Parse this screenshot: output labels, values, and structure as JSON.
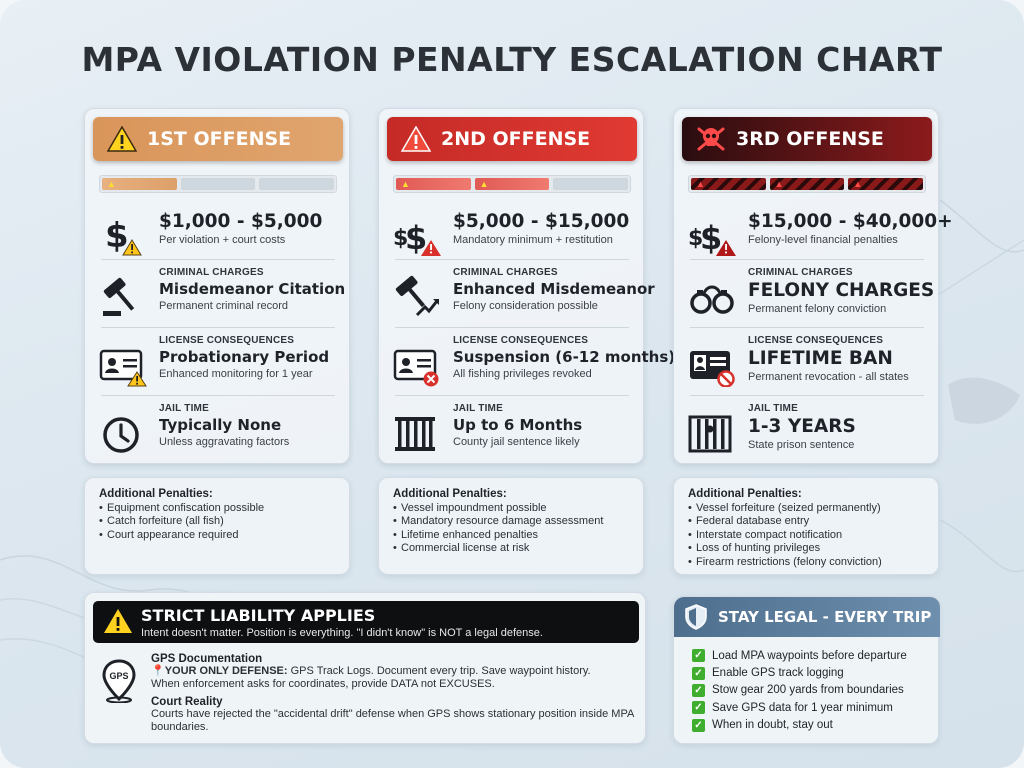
{
  "title": "MPA VIOLATION PENALTY ESCALATION CHART",
  "offenses": [
    {
      "header": "1ST OFFENSE",
      "fine": {
        "amount": "$1,000 - $5,000",
        "note": "Per violation + court costs"
      },
      "criminal": {
        "label": "CRIMINAL CHARGES",
        "value": "Misdemeanor Citation",
        "note": "Permanent criminal record"
      },
      "license": {
        "label": "LICENSE CONSEQUENCES",
        "value": "Probationary Period",
        "note": "Enhanced monitoring for 1 year"
      },
      "jail": {
        "label": "JAIL TIME",
        "value": "Typically None",
        "note": "Unless aggravating factors"
      },
      "additional_title": "Additional Penalties:",
      "additional": [
        "Equipment confiscation possible",
        "Catch forfeiture (all fish)",
        "Court appearance required"
      ]
    },
    {
      "header": "2ND OFFENSE",
      "fine": {
        "amount": "$5,000 - $15,000",
        "note": "Mandatory minimum + restitution"
      },
      "criminal": {
        "label": "CRIMINAL CHARGES",
        "value": "Enhanced Misdemeanor",
        "note": "Felony consideration possible"
      },
      "license": {
        "label": "LICENSE CONSEQUENCES",
        "value": "Suspension (6-12 months)",
        "note": "All fishing privileges revoked"
      },
      "jail": {
        "label": "JAIL TIME",
        "value": "Up to 6 Months",
        "note": "County jail sentence likely"
      },
      "additional_title": "Additional Penalties:",
      "additional": [
        "Vessel impoundment possible",
        "Mandatory resource damage assessment",
        "Lifetime enhanced penalties",
        "Commercial license at risk"
      ]
    },
    {
      "header": "3RD OFFENSE",
      "fine": {
        "amount": "$15,000 - $40,000+",
        "note": "Felony-level financial penalties"
      },
      "criminal": {
        "label": "CRIMINAL CHARGES",
        "value": "FELONY CHARGES",
        "note": "Permanent felony conviction"
      },
      "license": {
        "label": "LICENSE CONSEQUENCES",
        "value": "LIFETIME BAN",
        "note": "Permanent revocation - all states"
      },
      "jail": {
        "label": "JAIL TIME",
        "value": "1-3 YEARS",
        "note": "State prison sentence"
      },
      "additional_title": "Additional Penalties:",
      "additional": [
        "Vessel forfeiture (seized permanently)",
        "Federal database entry",
        "Interstate compact notification",
        "Loss of hunting privileges",
        "Firearm restrictions (felony conviction)"
      ]
    }
  ],
  "strict": {
    "title": "STRICT LIABILITY APPLIES",
    "subtitle": "Intent doesn't matter. Position is everything. \"I didn't know\" is NOT a legal defense.",
    "gps_label": "GPS",
    "gps_heading": "GPS Documentation",
    "gps_bold": "YOUR ONLY DEFENSE:",
    "gps_text": " GPS Track Logs. Document every trip. Save waypoint history.",
    "gps_text2": "When enforcement asks for coordinates, provide DATA not EXCUSES.",
    "court_heading": "Court Reality",
    "court_text": "Courts have rejected the \"accidental drift\" defense when GPS shows stationary position inside MPA boundaries."
  },
  "legal": {
    "title": "STAY LEGAL - EVERY TRIP",
    "items": [
      "Load MPA waypoints before departure",
      "Enable GPS track logging",
      "Stow gear 200 yards from boundaries",
      "Save GPS data for 1 year minimum",
      "When in doubt, stay out"
    ]
  },
  "colors": {
    "offense1": "#dc9c64",
    "offense2": "#d8302b",
    "offense3": "#5a1214",
    "legal_header": "#5b7b9b",
    "check": "#3fae2e"
  }
}
